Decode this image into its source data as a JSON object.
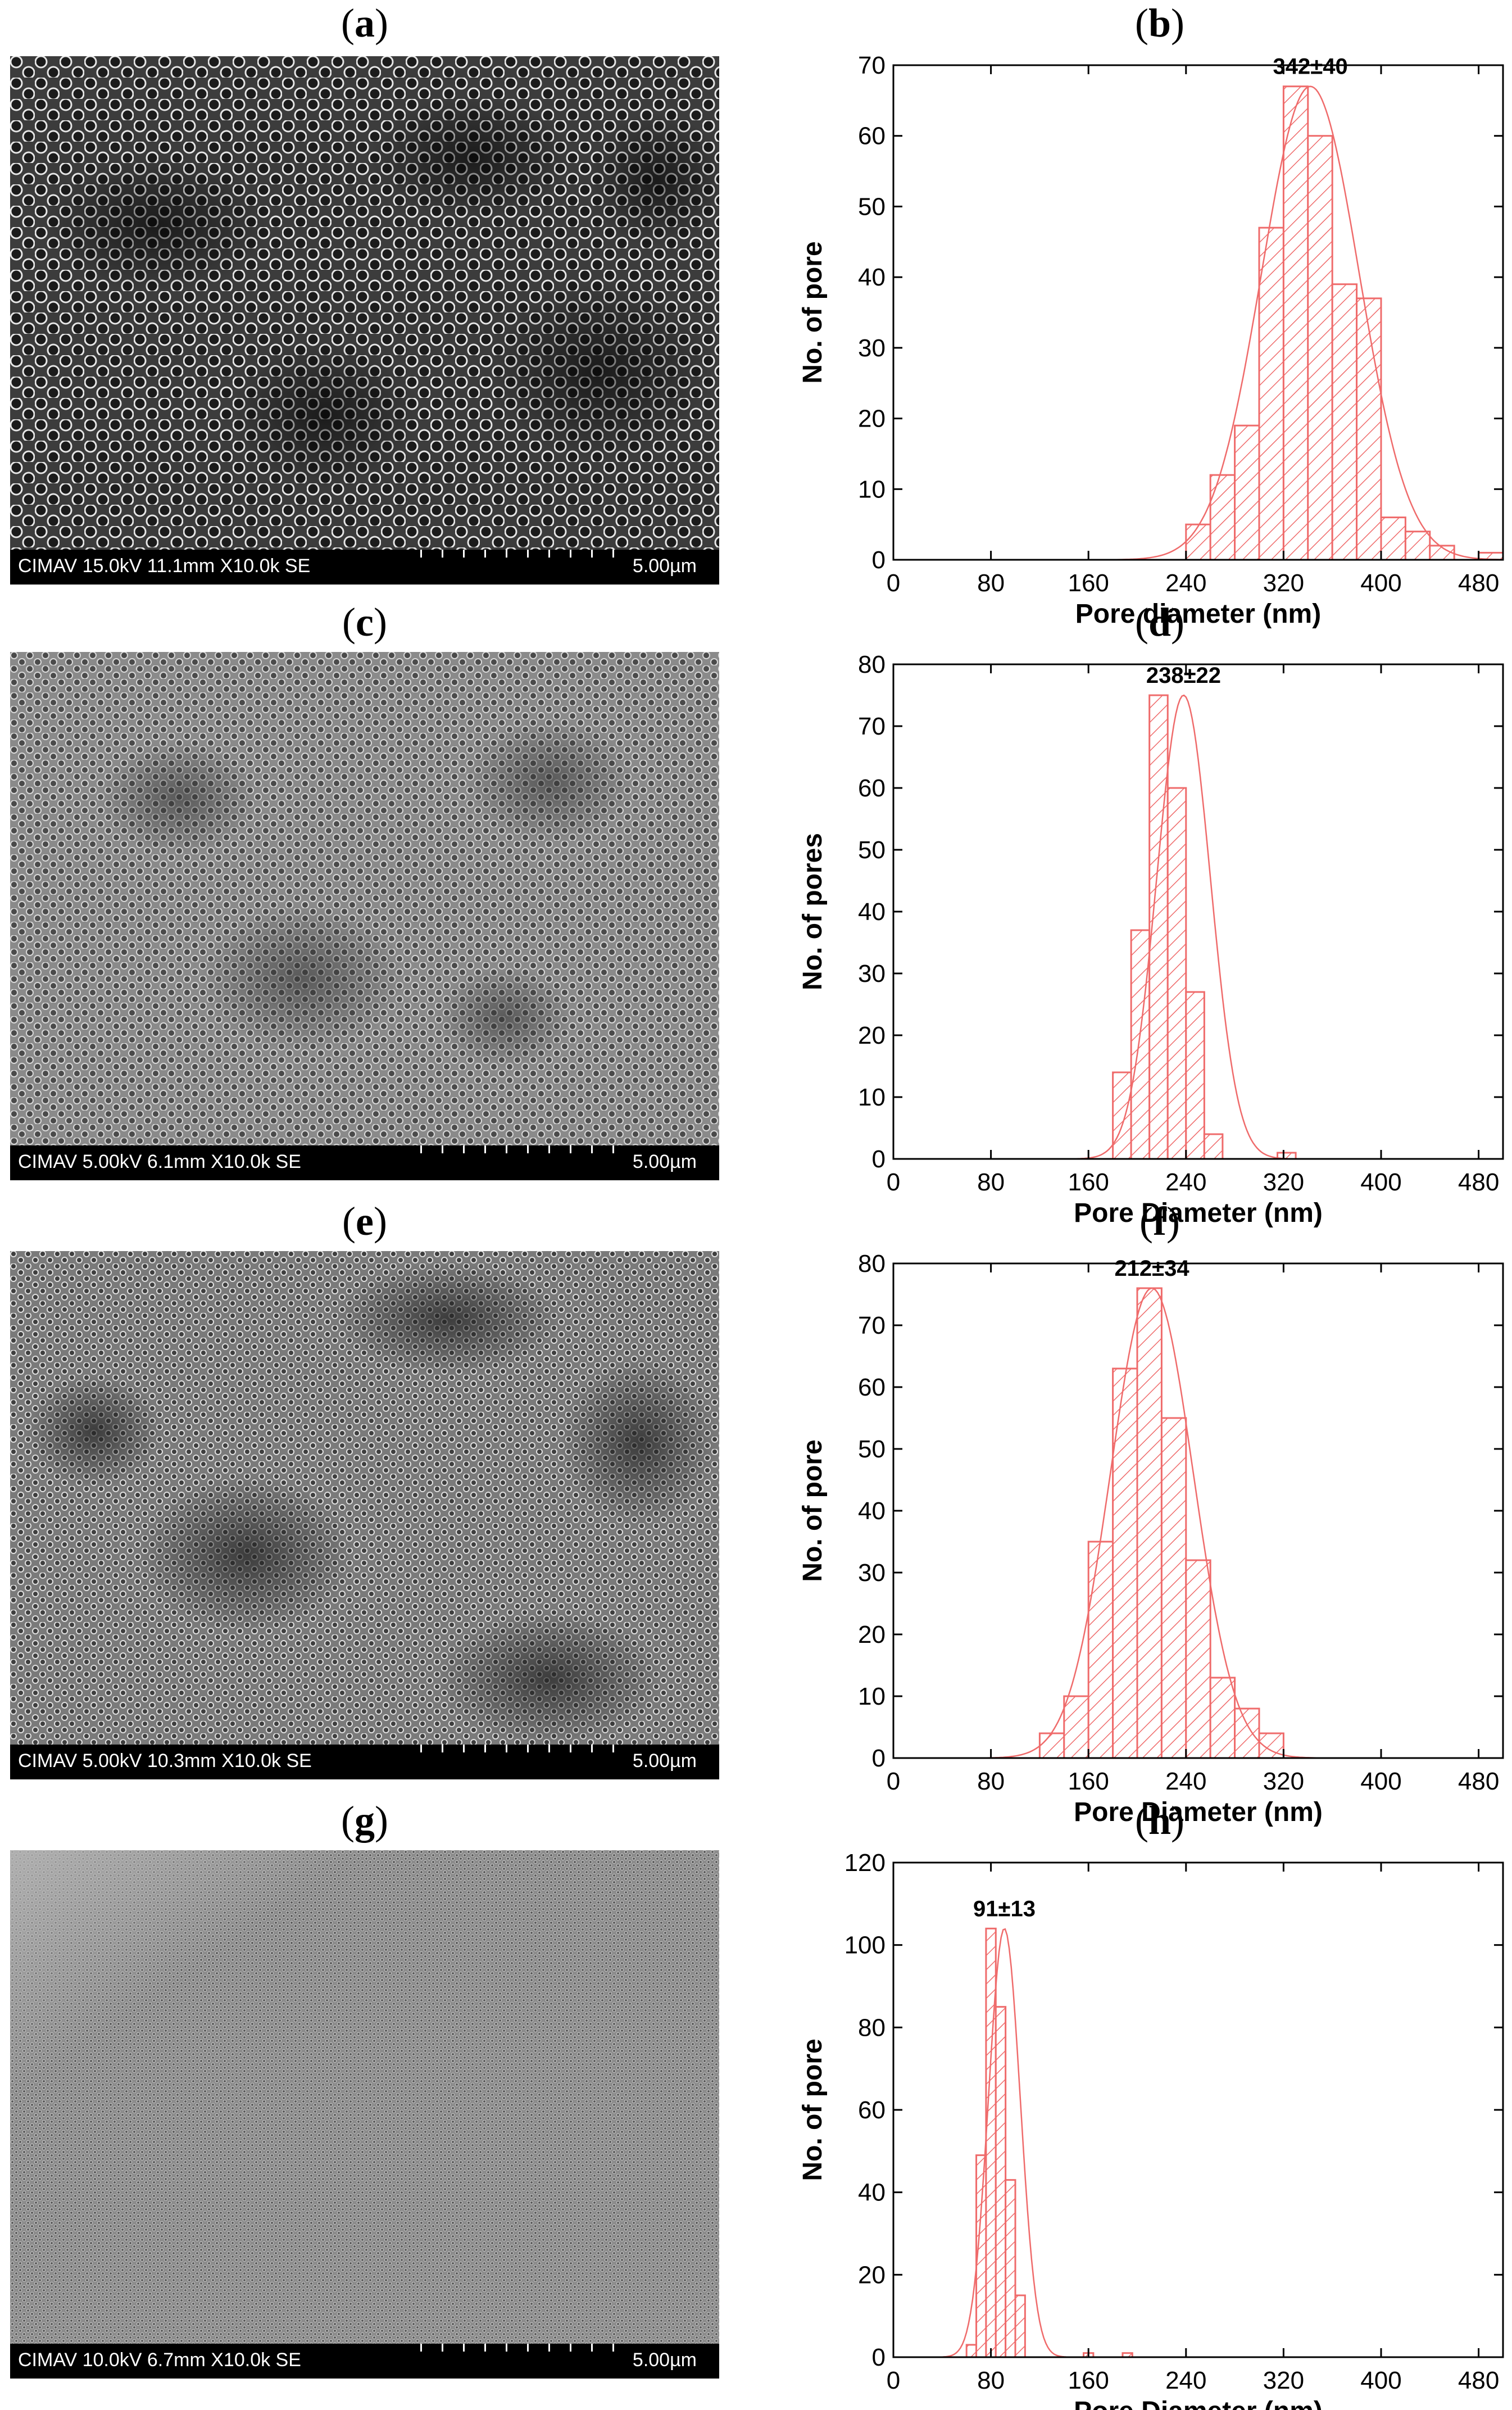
{
  "panels": [
    {
      "label_open": "(",
      "label_letter": "a",
      "label_close": ")",
      "sem_info": "CIMAV 15.0kV 11.1mm X10.0k SE",
      "sem_scale": "5.00µm"
    },
    {
      "label_open": "(",
      "label_letter": "c",
      "label_close": ")",
      "sem_info": "CIMAV 5.00kV 6.1mm X10.0k SE",
      "sem_scale": "5.00µm"
    },
    {
      "label_open": "(",
      "label_letter": "e",
      "label_close": ")",
      "sem_info": "CIMAV 5.00kV 10.3mm X10.0k SE",
      "sem_scale": "5.00µm"
    },
    {
      "label_open": "(",
      "label_letter": "g",
      "label_close": ")",
      "sem_info": "CIMAV 10.0kV 6.7mm X10.0k SE",
      "sem_scale": "5.00µm"
    }
  ],
  "hist_labels": [
    {
      "label_open": "(",
      "label_letter": "b",
      "label_close": ")"
    },
    {
      "label_open": "(",
      "label_letter": "d",
      "label_close": ")"
    },
    {
      "label_open": "(",
      "label_letter": "f",
      "label_close": ")"
    },
    {
      "label_open": "(",
      "label_letter": "h",
      "label_close": ")"
    }
  ],
  "colors": {
    "bar": "#ef6b6b",
    "curve": "#ef6b6b",
    "axis": "#000000"
  },
  "chart_data": [
    {
      "type": "bar",
      "annotation": "342±40",
      "xlabel": "Pore diameter (nm)",
      "ylabel": "No. of pore",
      "xlim": [
        0,
        500
      ],
      "ylim": [
        0,
        70
      ],
      "xticks": [
        0,
        80,
        160,
        240,
        320,
        400,
        480
      ],
      "yticks": [
        0,
        10,
        20,
        30,
        40,
        50,
        60,
        70
      ],
      "bin_width": 20,
      "bin_starts": [
        240,
        260,
        280,
        300,
        320,
        340,
        360,
        380,
        400,
        420,
        440,
        460,
        480
      ],
      "values": [
        5,
        12,
        19,
        47,
        67,
        60,
        39,
        37,
        6,
        4,
        2,
        0,
        1
      ],
      "fit_mean": 342,
      "fit_sd": 40,
      "fit_peak": 67
    },
    {
      "type": "bar",
      "annotation": "238±22",
      "xlabel": "Pore Diameter (nm)",
      "ylabel": "No. of pores",
      "xlim": [
        0,
        500
      ],
      "ylim": [
        0,
        80
      ],
      "xticks": [
        0,
        80,
        160,
        240,
        320,
        400,
        480
      ],
      "yticks": [
        0,
        10,
        20,
        30,
        40,
        50,
        60,
        70,
        80
      ],
      "bin_width": 15,
      "bin_starts": [
        180,
        195,
        210,
        225,
        240,
        255,
        270,
        285,
        300,
        315
      ],
      "values": [
        14,
        37,
        75,
        60,
        27,
        4,
        0,
        0,
        0,
        1
      ],
      "fit_mean": 238,
      "fit_sd": 22,
      "fit_peak": 75
    },
    {
      "type": "bar",
      "annotation": "212±34",
      "xlabel": "Pore Diameter (nm)",
      "ylabel": "No. of pore",
      "xlim": [
        0,
        500
      ],
      "ylim": [
        0,
        80
      ],
      "xticks": [
        0,
        80,
        160,
        240,
        320,
        400,
        480
      ],
      "yticks": [
        0,
        10,
        20,
        30,
        40,
        50,
        60,
        70,
        80
      ],
      "bin_width": 20,
      "bin_starts": [
        120,
        140,
        160,
        180,
        200,
        220,
        240,
        260,
        280,
        300
      ],
      "values": [
        4,
        10,
        35,
        63,
        76,
        55,
        32,
        13,
        8,
        4
      ],
      "fit_mean": 212,
      "fit_sd": 34,
      "fit_peak": 76
    },
    {
      "type": "bar",
      "annotation": "91±13",
      "xlabel": "Pore Diameter (nm)",
      "ylabel": "No. of pore",
      "xlim": [
        0,
        500
      ],
      "ylim": [
        0,
        120
      ],
      "xticks": [
        0,
        80,
        160,
        240,
        320,
        400,
        480
      ],
      "yticks": [
        0,
        20,
        40,
        60,
        80,
        100,
        120
      ],
      "bin_width": 8,
      "bin_starts": [
        60,
        68,
        76,
        84,
        92,
        100,
        108,
        116,
        124,
        132,
        140,
        148,
        156,
        164,
        172,
        180,
        188
      ],
      "values": [
        3,
        49,
        104,
        85,
        43,
        15,
        0,
        0,
        0,
        0,
        0,
        0,
        1,
        0,
        0,
        0,
        1
      ],
      "fit_mean": 91,
      "fit_sd": 13,
      "fit_peak": 104
    }
  ]
}
